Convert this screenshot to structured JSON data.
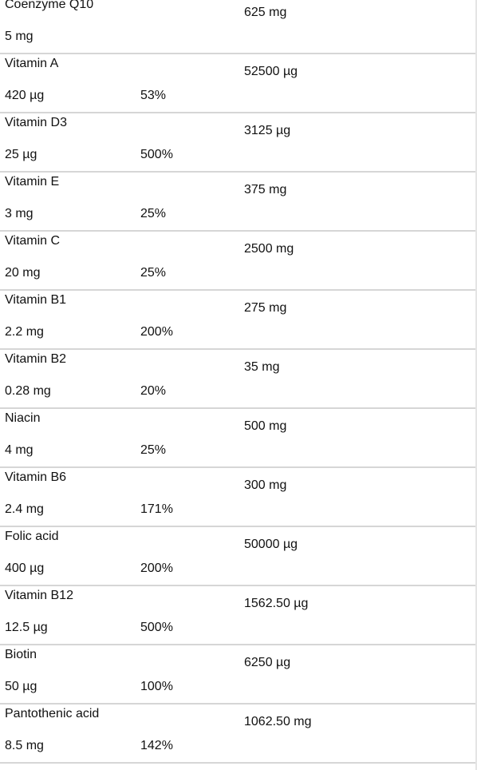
{
  "rows": [
    {
      "name": "Coenzyme Q10",
      "amount": "5 mg",
      "percent": "",
      "value": "625 mg"
    },
    {
      "name": "Vitamin A",
      "amount": "420 µg",
      "percent": "53%",
      "value": "52500 µg"
    },
    {
      "name": "Vitamin D3",
      "amount": "25 µg",
      "percent": "500%",
      "value": "3125 µg"
    },
    {
      "name": "Vitamin E",
      "amount": "3 mg",
      "percent": "25%",
      "value": "375 mg"
    },
    {
      "name": "Vitamin C",
      "amount": "20 mg",
      "percent": "25%",
      "value": "2500 mg"
    },
    {
      "name": "Vitamin B1",
      "amount": "2.2 mg",
      "percent": "200%",
      "value": "275 mg"
    },
    {
      "name": "Vitamin B2",
      "amount": "0.28 mg",
      "percent": "20%",
      "value": "35 mg"
    },
    {
      "name": "Niacin",
      "amount": "4 mg",
      "percent": "25%",
      "value": "500 mg"
    },
    {
      "name": "Vitamin B6",
      "amount": "2.4 mg",
      "percent": "171%",
      "value": "300 mg"
    },
    {
      "name": "Folic acid",
      "amount": "400 µg",
      "percent": "200%",
      "value": "50000 µg"
    },
    {
      "name": "Vitamin B12",
      "amount": "12.5 µg",
      "percent": "500%",
      "value": "1562.50 µg"
    },
    {
      "name": "Biotin",
      "amount": "50 µg",
      "percent": "100%",
      "value": "6250 µg"
    },
    {
      "name": "Pantothenic acid",
      "amount": "8.5 mg",
      "percent": "142%",
      "value": "1062.50 mg"
    }
  ]
}
